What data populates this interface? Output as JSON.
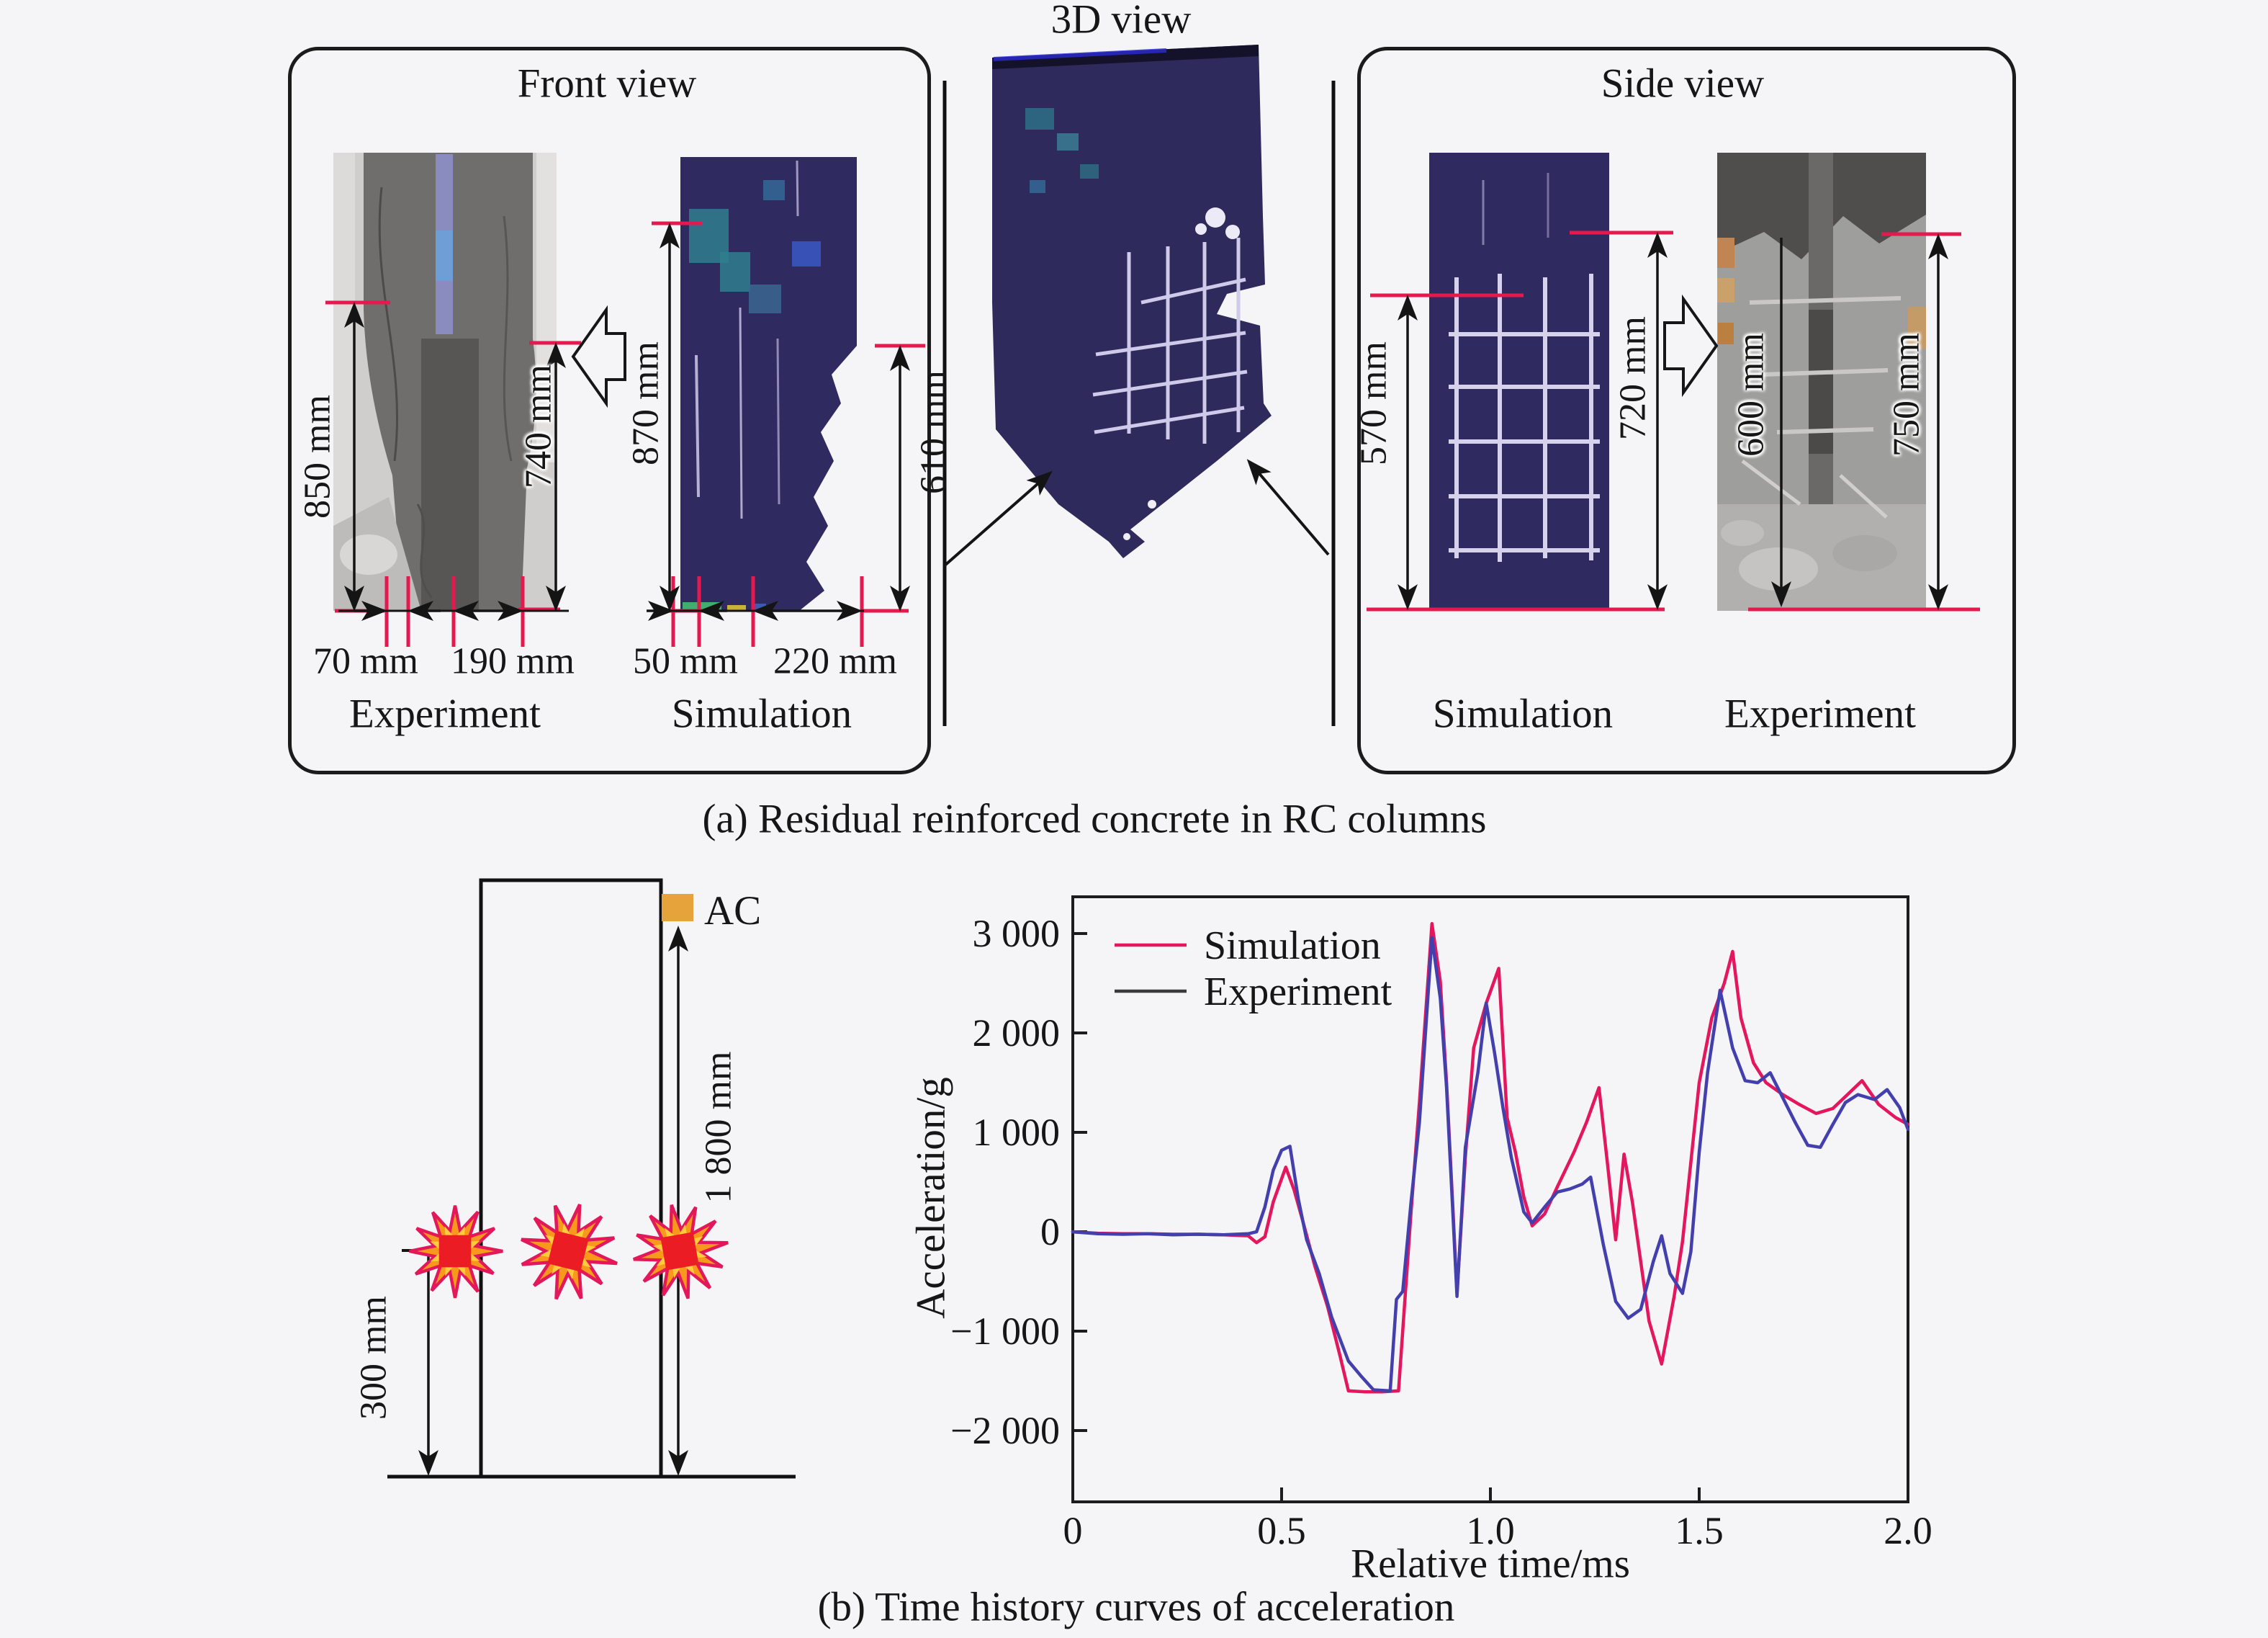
{
  "colors": {
    "accent_red": "#e5194e",
    "navy_simulation": "#2f2a60",
    "ac_orange": "#e6a33c",
    "simulation_line": "#e4175e",
    "experiment_line": "#4340ae",
    "experiment_legend": "#3a3a3a"
  },
  "panel_a": {
    "caption": "(a) Residual reinforced concrete in RC columns",
    "front_view": {
      "title": "Front view",
      "left_label": "Experiment",
      "right_label": "Simulation",
      "dim_850": "850 mm",
      "dim_740": "740 mm",
      "dim_870": "870 mm",
      "dim_610": "610 mm",
      "dim_70": "70 mm",
      "dim_190": "190 mm",
      "dim_50": "50 mm",
      "dim_220": "220 mm"
    },
    "three_d_view": {
      "title": "3D view"
    },
    "side_view": {
      "title": "Side view",
      "left_label": "Simulation",
      "right_label": "Experiment",
      "dim_570": "570 mm",
      "dim_720": "720 mm",
      "dim_600": "600 mm",
      "dim_750": "750 mm"
    }
  },
  "panel_b": {
    "caption": "(b) Time history curves of acceleration",
    "schematic": {
      "ac_label": "AC",
      "dim_height": "1 800 mm",
      "dim_standoff": "300 mm"
    }
  },
  "chart_data": {
    "type": "line",
    "title": "",
    "xlabel": "Relative time/ms",
    "ylabel": "Acceleration/g",
    "xlim": [
      0,
      2.0
    ],
    "ylim": [
      -2717,
      3370
    ],
    "x_tick_values": [
      0,
      0.5,
      1.0,
      1.5,
      2.0
    ],
    "x_tick_labels": [
      "0",
      "0.5",
      "1.0",
      "1.5",
      "2.0"
    ],
    "y_tick_values": [
      3000,
      2000,
      1000,
      0,
      -1000,
      -2000
    ],
    "y_tick_labels": [
      "3 000",
      "2 000",
      "1 000",
      "0",
      "−1 000",
      "−2 000"
    ],
    "grid": false,
    "legend_position": "top-left",
    "series": [
      {
        "name": "Simulation",
        "color": "#e4175e",
        "points": [
          [
            0,
            0
          ],
          [
            0.06,
            -15
          ],
          [
            0.12,
            -20
          ],
          [
            0.18,
            -20
          ],
          [
            0.24,
            -25
          ],
          [
            0.3,
            -25
          ],
          [
            0.36,
            -30
          ],
          [
            0.42,
            -40
          ],
          [
            0.44,
            -110
          ],
          [
            0.46,
            -50
          ],
          [
            0.48,
            300
          ],
          [
            0.51,
            650
          ],
          [
            0.53,
            420
          ],
          [
            0.55,
            120
          ],
          [
            0.58,
            -350
          ],
          [
            0.61,
            -750
          ],
          [
            0.64,
            -1250
          ],
          [
            0.66,
            -1600
          ],
          [
            0.7,
            -1610
          ],
          [
            0.74,
            -1610
          ],
          [
            0.78,
            -1600
          ],
          [
            0.795,
            -700
          ],
          [
            0.81,
            200
          ],
          [
            0.83,
            1300
          ],
          [
            0.86,
            3100
          ],
          [
            0.88,
            2520
          ],
          [
            0.895,
            1500
          ],
          [
            0.91,
            250
          ],
          [
            0.92,
            -620
          ],
          [
            0.94,
            750
          ],
          [
            0.96,
            1850
          ],
          [
            0.99,
            2300
          ],
          [
            1.02,
            2650
          ],
          [
            1.04,
            1150
          ],
          [
            1.06,
            800
          ],
          [
            1.08,
            350
          ],
          [
            1.1,
            60
          ],
          [
            1.13,
            180
          ],
          [
            1.16,
            450
          ],
          [
            1.2,
            800
          ],
          [
            1.23,
            1100
          ],
          [
            1.26,
            1450
          ],
          [
            1.28,
            700
          ],
          [
            1.3,
            -80
          ],
          [
            1.32,
            780
          ],
          [
            1.34,
            300
          ],
          [
            1.36,
            -300
          ],
          [
            1.38,
            -900
          ],
          [
            1.41,
            -1330
          ],
          [
            1.44,
            -650
          ],
          [
            1.46,
            -100
          ],
          [
            1.48,
            700
          ],
          [
            1.5,
            1500
          ],
          [
            1.53,
            2150
          ],
          [
            1.56,
            2500
          ],
          [
            1.58,
            2820
          ],
          [
            1.6,
            2150
          ],
          [
            1.63,
            1700
          ],
          [
            1.66,
            1500
          ],
          [
            1.7,
            1380
          ],
          [
            1.74,
            1280
          ],
          [
            1.78,
            1190
          ],
          [
            1.82,
            1240
          ],
          [
            1.86,
            1400
          ],
          [
            1.89,
            1520
          ],
          [
            1.93,
            1280
          ],
          [
            1.97,
            1150
          ],
          [
            2.0,
            1080
          ]
        ]
      },
      {
        "name": "Experiment",
        "color": "#4340ae",
        "legend_color": "#3a3a3a",
        "points": [
          [
            0,
            0
          ],
          [
            0.06,
            -20
          ],
          [
            0.12,
            -25
          ],
          [
            0.18,
            -20
          ],
          [
            0.24,
            -30
          ],
          [
            0.3,
            -25
          ],
          [
            0.36,
            -30
          ],
          [
            0.42,
            -20
          ],
          [
            0.44,
            0
          ],
          [
            0.46,
            250
          ],
          [
            0.48,
            620
          ],
          [
            0.5,
            820
          ],
          [
            0.52,
            860
          ],
          [
            0.54,
            330
          ],
          [
            0.56,
            -80
          ],
          [
            0.59,
            -420
          ],
          [
            0.62,
            -860
          ],
          [
            0.66,
            -1300
          ],
          [
            0.69,
            -1450
          ],
          [
            0.72,
            -1590
          ],
          [
            0.76,
            -1600
          ],
          [
            0.775,
            -680
          ],
          [
            0.79,
            -600
          ],
          [
            0.81,
            300
          ],
          [
            0.83,
            1100
          ],
          [
            0.86,
            2960
          ],
          [
            0.88,
            2350
          ],
          [
            0.895,
            1450
          ],
          [
            0.91,
            200
          ],
          [
            0.92,
            -650
          ],
          [
            0.94,
            850
          ],
          [
            0.97,
            1600
          ],
          [
            0.99,
            2300
          ],
          [
            1.01,
            1800
          ],
          [
            1.03,
            1250
          ],
          [
            1.05,
            750
          ],
          [
            1.08,
            200
          ],
          [
            1.1,
            90
          ],
          [
            1.13,
            250
          ],
          [
            1.16,
            400
          ],
          [
            1.19,
            430
          ],
          [
            1.22,
            480
          ],
          [
            1.24,
            550
          ],
          [
            1.27,
            -120
          ],
          [
            1.3,
            -700
          ],
          [
            1.33,
            -870
          ],
          [
            1.36,
            -780
          ],
          [
            1.39,
            -300
          ],
          [
            1.41,
            -40
          ],
          [
            1.43,
            -420
          ],
          [
            1.46,
            -620
          ],
          [
            1.48,
            -200
          ],
          [
            1.5,
            800
          ],
          [
            1.52,
            1600
          ],
          [
            1.55,
            2430
          ],
          [
            1.58,
            1850
          ],
          [
            1.61,
            1520
          ],
          [
            1.64,
            1500
          ],
          [
            1.67,
            1600
          ],
          [
            1.7,
            1350
          ],
          [
            1.73,
            1100
          ],
          [
            1.76,
            870
          ],
          [
            1.79,
            850
          ],
          [
            1.82,
            1080
          ],
          [
            1.85,
            1300
          ],
          [
            1.88,
            1380
          ],
          [
            1.92,
            1330
          ],
          [
            1.95,
            1430
          ],
          [
            1.98,
            1250
          ],
          [
            2.0,
            1030
          ]
        ]
      }
    ]
  }
}
